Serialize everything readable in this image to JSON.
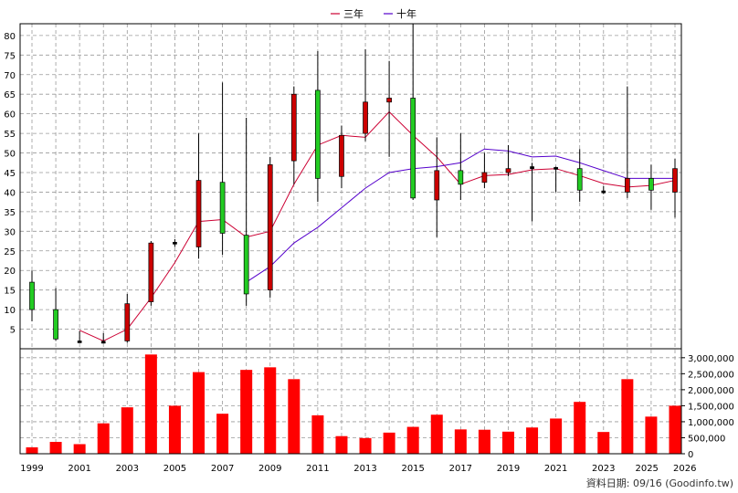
{
  "chart_data": {
    "type": "candlestick+bar",
    "legend": [
      {
        "name": "三年",
        "color": "#cc0033"
      },
      {
        "name": "十年",
        "color": "#5500cc"
      }
    ],
    "source_note": "資料日期: 09/16 (Goodinfo.tw)",
    "x_tick_labels": [
      "1999",
      "2001",
      "2003",
      "2005",
      "2007",
      "2009",
      "2011",
      "2013",
      "2015",
      "2017",
      "2019",
      "2021",
      "2023",
      "2025",
      "2026"
    ],
    "price_axis": {
      "min": 0,
      "max": 83,
      "ticks": [
        5,
        10,
        15,
        20,
        25,
        30,
        35,
        40,
        45,
        50,
        55,
        60,
        65,
        70,
        75,
        80
      ]
    },
    "volume_axis": {
      "min": 0,
      "max": 3000000,
      "tick_labels": [
        "0",
        "500,000",
        "1,000,000",
        "1,500,000",
        "2,000,000",
        "2,500,000",
        "3,000,000"
      ],
      "tick_values": [
        0,
        500000,
        1000000,
        1500000,
        2000000,
        2500000,
        3000000
      ]
    },
    "up_color": "#cc0000",
    "down_color": "#22cc22",
    "neutral_color": "#000000",
    "bar_color": "#ff0000",
    "years": [
      1999,
      2000,
      2001,
      2002,
      2003,
      2004,
      2005,
      2006,
      2007,
      2008,
      2009,
      2010,
      2011,
      2012,
      2013,
      2014,
      2015,
      2016,
      2017,
      2018,
      2019,
      2020,
      2021,
      2022,
      2023,
      2024,
      2025,
      2026
    ],
    "candles": [
      {
        "year": 1999,
        "open": 17,
        "high": 20,
        "low": 7,
        "close": 10
      },
      {
        "year": 2000,
        "open": 10,
        "high": 15.5,
        "low": 2,
        "close": 2.5
      },
      {
        "year": 2001,
        "open": 2,
        "high": 4.5,
        "low": 1.5,
        "close": 1.8
      },
      {
        "year": 2002,
        "open": 1.8,
        "high": 4,
        "low": 1.5,
        "close": 1.9
      },
      {
        "year": 2003,
        "open": 2,
        "high": 14,
        "low": 1.5,
        "close": 11.5
      },
      {
        "year": 2004,
        "open": 12,
        "high": 27.5,
        "low": 11,
        "close": 27
      },
      {
        "year": 2005,
        "open": 27,
        "high": 28,
        "low": 26,
        "close": 27.2
      },
      {
        "year": 2006,
        "open": 26,
        "high": 55,
        "low": 23,
        "close": 43
      },
      {
        "year": 2007,
        "open": 42.5,
        "high": 68,
        "low": 24,
        "close": 29.5
      },
      {
        "year": 2008,
        "open": 29,
        "high": 59,
        "low": 11,
        "close": 14
      },
      {
        "year": 2009,
        "open": 15,
        "high": 49,
        "low": 13,
        "close": 47
      },
      {
        "year": 2010,
        "open": 48,
        "high": 67,
        "low": 42,
        "close": 65
      },
      {
        "year": 2011,
        "open": 66,
        "high": 76,
        "low": 37.5,
        "close": 43.5
      },
      {
        "year": 2012,
        "open": 44,
        "high": 57,
        "low": 41,
        "close": 54.5
      },
      {
        "year": 2013,
        "open": 55,
        "high": 76.5,
        "low": 53,
        "close": 63
      },
      {
        "year": 2014,
        "open": 63,
        "high": 73.5,
        "low": 49,
        "close": 64
      },
      {
        "year": 2015,
        "open": 64,
        "high": 83,
        "low": 38,
        "close": 38.5
      },
      {
        "year": 2016,
        "open": 38,
        "high": 54,
        "low": 28.5,
        "close": 45.5
      },
      {
        "year": 2017,
        "open": 45.5,
        "high": 55,
        "low": 38,
        "close": 42
      },
      {
        "year": 2018,
        "open": 42.5,
        "high": 50,
        "low": 41,
        "close": 45
      },
      {
        "year": 2019,
        "open": 45,
        "high": 52,
        "low": 44,
        "close": 46
      },
      {
        "year": 2020,
        "open": 46,
        "high": 47.5,
        "low": 32.5,
        "close": 46.5
      },
      {
        "year": 2021,
        "open": 46,
        "high": 46.5,
        "low": 40,
        "close": 46.3
      },
      {
        "year": 2022,
        "open": 46,
        "high": 51,
        "low": 37.5,
        "close": 40.5
      },
      {
        "year": 2023,
        "open": 40,
        "high": 41.5,
        "low": 39.5,
        "close": 40.3
      },
      {
        "year": 2024,
        "open": 40,
        "high": 67,
        "low": 38.5,
        "close": 43.5
      },
      {
        "year": 2025,
        "open": 43.5,
        "high": 47,
        "low": 35.5,
        "close": 40.5
      },
      {
        "year": 2026,
        "open": 40,
        "high": 48.5,
        "low": 33.5,
        "close": 46
      }
    ],
    "ma3": [
      {
        "year": 2001,
        "value": 4.7
      },
      {
        "year": 2002,
        "value": 2
      },
      {
        "year": 2003,
        "value": 5
      },
      {
        "year": 2004,
        "value": 13
      },
      {
        "year": 2005,
        "value": 22
      },
      {
        "year": 2006,
        "value": 32.5
      },
      {
        "year": 2007,
        "value": 33
      },
      {
        "year": 2008,
        "value": 28.5
      },
      {
        "year": 2009,
        "value": 30
      },
      {
        "year": 2010,
        "value": 42
      },
      {
        "year": 2011,
        "value": 52
      },
      {
        "year": 2012,
        "value": 54.5
      },
      {
        "year": 2013,
        "value": 54
      },
      {
        "year": 2014,
        "value": 60.5
      },
      {
        "year": 2015,
        "value": 54.5
      },
      {
        "year": 2016,
        "value": 49
      },
      {
        "year": 2017,
        "value": 42
      },
      {
        "year": 2018,
        "value": 44.2
      },
      {
        "year": 2019,
        "value": 44.5
      },
      {
        "year": 2020,
        "value": 45.7
      },
      {
        "year": 2021,
        "value": 46
      },
      {
        "year": 2022,
        "value": 44.2
      },
      {
        "year": 2023,
        "value": 42.2
      },
      {
        "year": 2024,
        "value": 41.3
      },
      {
        "year": 2025,
        "value": 41.7
      },
      {
        "year": 2026,
        "value": 43
      }
    ],
    "ma10": [
      {
        "year": 2008,
        "value": 17
      },
      {
        "year": 2009,
        "value": 21
      },
      {
        "year": 2010,
        "value": 27
      },
      {
        "year": 2011,
        "value": 31
      },
      {
        "year": 2012,
        "value": 36
      },
      {
        "year": 2013,
        "value": 41
      },
      {
        "year": 2014,
        "value": 45
      },
      {
        "year": 2015,
        "value": 46
      },
      {
        "year": 2016,
        "value": 46.5
      },
      {
        "year": 2017,
        "value": 47.5
      },
      {
        "year": 2018,
        "value": 51
      },
      {
        "year": 2019,
        "value": 50.5
      },
      {
        "year": 2020,
        "value": 49
      },
      {
        "year": 2021,
        "value": 49.2
      },
      {
        "year": 2022,
        "value": 47.5
      },
      {
        "year": 2023,
        "value": 45.5
      },
      {
        "year": 2024,
        "value": 43.5
      },
      {
        "year": 2025,
        "value": 43.5
      },
      {
        "year": 2026,
        "value": 43.5
      }
    ],
    "volumes": [
      {
        "year": 1999,
        "value": 200000
      },
      {
        "year": 2000,
        "value": 370000
      },
      {
        "year": 2001,
        "value": 300000
      },
      {
        "year": 2002,
        "value": 950000
      },
      {
        "year": 2003,
        "value": 1450000
      },
      {
        "year": 2004,
        "value": 3100000
      },
      {
        "year": 2005,
        "value": 1500000
      },
      {
        "year": 2006,
        "value": 2550000
      },
      {
        "year": 2007,
        "value": 1250000
      },
      {
        "year": 2008,
        "value": 2620000
      },
      {
        "year": 2009,
        "value": 2700000
      },
      {
        "year": 2010,
        "value": 2330000
      },
      {
        "year": 2011,
        "value": 1200000
      },
      {
        "year": 2012,
        "value": 550000
      },
      {
        "year": 2013,
        "value": 490000
      },
      {
        "year": 2014,
        "value": 660000
      },
      {
        "year": 2015,
        "value": 840000
      },
      {
        "year": 2016,
        "value": 1220000
      },
      {
        "year": 2017,
        "value": 760000
      },
      {
        "year": 2018,
        "value": 750000
      },
      {
        "year": 2019,
        "value": 690000
      },
      {
        "year": 2020,
        "value": 820000
      },
      {
        "year": 2021,
        "value": 1100000
      },
      {
        "year": 2022,
        "value": 1620000
      },
      {
        "year": 2023,
        "value": 680000
      },
      {
        "year": 2024,
        "value": 2330000
      },
      {
        "year": 2025,
        "value": 1160000
      },
      {
        "year": 2026,
        "value": 1500000
      }
    ]
  }
}
